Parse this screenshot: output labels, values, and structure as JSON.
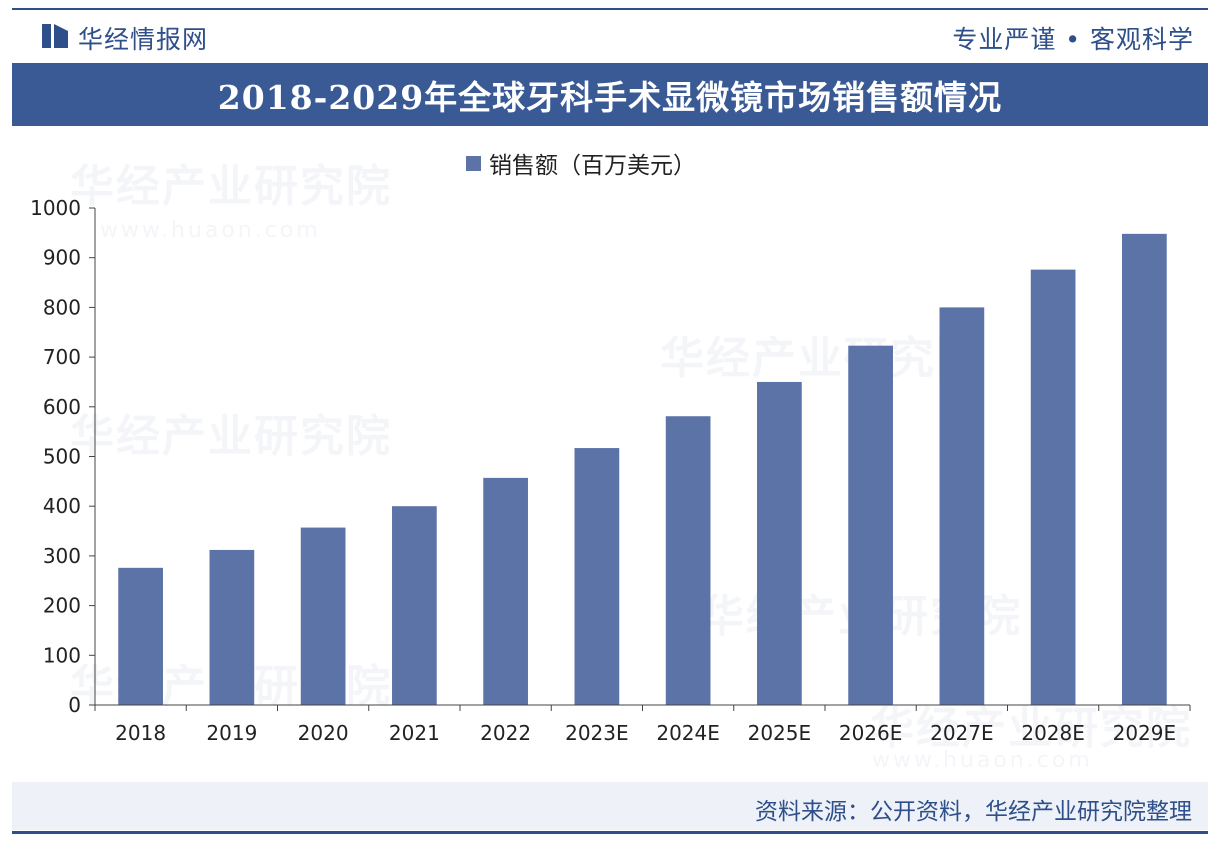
{
  "header": {
    "brand": "华经情报网",
    "slogan": "专业严谨 • 客观科学"
  },
  "watermark": {
    "text": "华经产业研究院",
    "url": "www.huaon.com"
  },
  "footer": {
    "source": "资料来源：公开资料，华经产业研究院整理"
  },
  "colors": {
    "bar": "#5b73a6",
    "title_bar": "#3a5a96",
    "brand_blue": "#2e4f8a"
  },
  "chart_data": {
    "type": "bar",
    "title": "2018-2029年全球牙科手术显微镜市场销售额情况",
    "categories": [
      "2018",
      "2019",
      "2020",
      "2021",
      "2022",
      "2023E",
      "2024E",
      "2025E",
      "2026E",
      "2027E",
      "2028E",
      "2029E"
    ],
    "series": [
      {
        "name": "销售额（百万美元）",
        "values": [
          276,
          312,
          357,
          400,
          457,
          517,
          581,
          650,
          723,
          800,
          876,
          948
        ]
      }
    ],
    "ylim": [
      0,
      1000
    ],
    "yticks": [
      0,
      100,
      200,
      300,
      400,
      500,
      600,
      700,
      800,
      900,
      1000
    ],
    "xlabel": "",
    "ylabel": "",
    "grid": false,
    "legend": "top-center"
  }
}
